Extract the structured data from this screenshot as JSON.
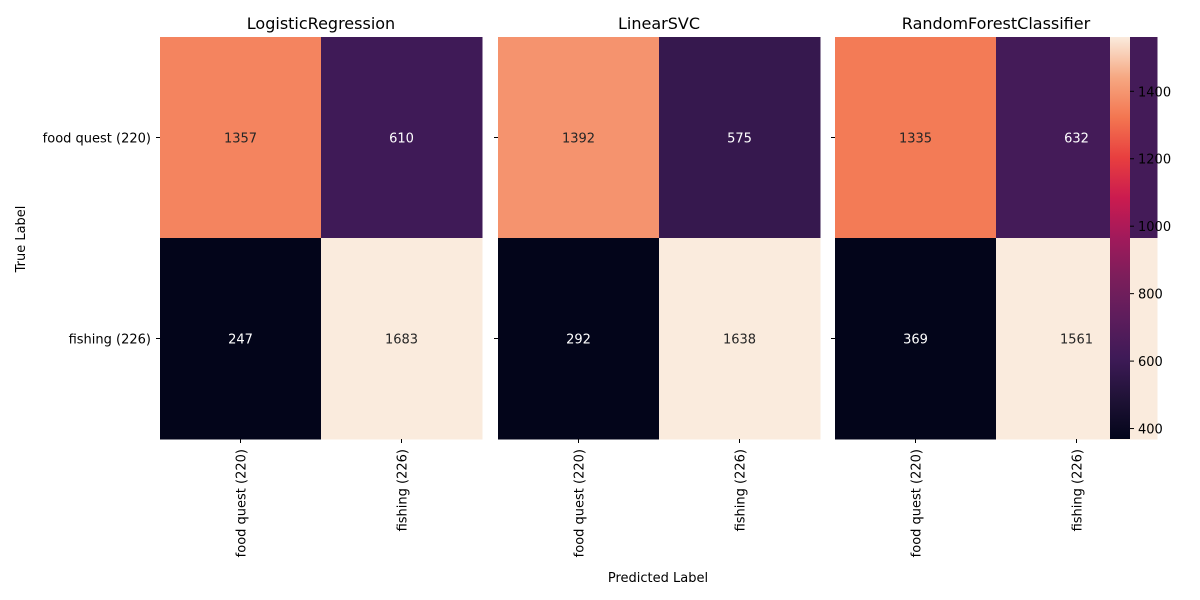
{
  "chart_data": {
    "type": "heatmap",
    "xlabel": "Predicted Label",
    "ylabel": "True Label",
    "row_labels": [
      "food quest (220)",
      "fishing (226)"
    ],
    "col_labels": [
      "food quest (220)",
      "fishing (226)"
    ],
    "colormap": "rocket",
    "value_range": [
      369,
      1561
    ],
    "colorbar_ticks": [
      400,
      600,
      800,
      1000,
      1200,
      1400
    ],
    "panels": [
      {
        "title": "LogisticRegression",
        "matrix": [
          [
            1357,
            610
          ],
          [
            247,
            1683
          ]
        ]
      },
      {
        "title": "LinearSVC",
        "matrix": [
          [
            1392,
            575
          ],
          [
            292,
            1638
          ]
        ]
      },
      {
        "title": "RandomForestClassifier",
        "matrix": [
          [
            1335,
            632
          ],
          [
            369,
            1561
          ]
        ]
      }
    ]
  }
}
